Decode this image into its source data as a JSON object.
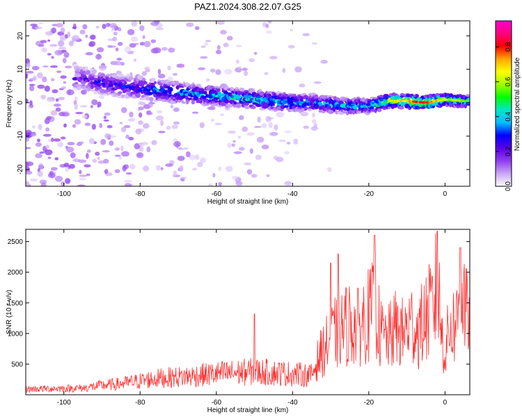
{
  "figure": {
    "title": "PAZ1.2024.308.22.07.G25"
  },
  "chart_data": [
    {
      "type": "heatmap",
      "xlabel": "Height of straight line (km)",
      "ylabel": "Frequency (Hz)",
      "xlim": [
        -110,
        6.5
      ],
      "ylim": [
        -25,
        24.5
      ],
      "x_ticks": [
        -100,
        -80,
        -60,
        -40,
        -20,
        0
      ],
      "y_ticks": [
        -20,
        -10,
        0,
        10,
        20
      ],
      "colorbar": {
        "label": "Normalized spectral amplitude",
        "range": [
          0,
          0.95
        ],
        "ticks": [
          0.0,
          0.2,
          0.4,
          0.6,
          0.8
        ],
        "tick_labels": [
          "0.0",
          "0.2",
          "0.4",
          "0.6",
          "0.8"
        ],
        "colormap": [
          "#ffffff",
          "#c9a5f5",
          "#8f3cf0",
          "#5b00e8",
          "#0000ff",
          "#00bfff",
          "#00e6c8",
          "#00ff00",
          "#a0ff00",
          "#ffff00",
          "#ffa500",
          "#ff0000",
          "#ff0080",
          "#ff00c8"
        ]
      },
      "ridge": {
        "x": [
          -96,
          -90,
          -85,
          -80,
          -75,
          -70,
          -65,
          -60,
          -55,
          -50,
          -45,
          -40,
          -35,
          -30,
          -25,
          -20,
          -15,
          -10,
          -5,
          0,
          5
        ],
        "frequency": [
          7.5,
          6,
          5,
          4.5,
          3.5,
          3,
          2.5,
          2,
          1.5,
          1,
          0.5,
          0,
          0,
          -0.5,
          -1,
          -1,
          0.5,
          0.5,
          0,
          1,
          0.5
        ],
        "peak_amplitude": [
          0.25,
          0.3,
          0.3,
          0.35,
          0.4,
          0.42,
          0.45,
          0.48,
          0.5,
          0.5,
          0.5,
          0.45,
          0.4,
          0.45,
          0.45,
          0.45,
          0.7,
          0.75,
          0.9,
          0.65,
          0.6
        ]
      },
      "grid": false
    },
    {
      "type": "line",
      "xlabel": "Height of straight line (km)",
      "ylabel": "SNR (10 * v/v)",
      "xlim": [
        -110,
        6.5
      ],
      "ylim": [
        0,
        2700
      ],
      "x_ticks": [
        -100,
        -80,
        -60,
        -40,
        -20,
        0
      ],
      "y_ticks": [
        500,
        1000,
        1500,
        2000,
        2500
      ],
      "series": [
        {
          "color": "#ff3030",
          "x": [
            -110,
            -105,
            -100,
            -95,
            -92,
            -90,
            -85,
            -80,
            -75,
            -70,
            -65,
            -60,
            -55,
            -50,
            -45,
            -40,
            -35,
            -33,
            -31,
            -29,
            -27,
            -25,
            -23,
            -21,
            -19,
            -18,
            -17,
            -15,
            -13,
            -11,
            -9,
            -7,
            -5,
            -3,
            -2,
            -1,
            0,
            1,
            3,
            4,
            5,
            6
          ],
          "values": [
            100,
            110,
            115,
            120,
            150,
            170,
            200,
            250,
            300,
            320,
            350,
            380,
            400,
            420,
            400,
            380,
            350,
            700,
            900,
            1100,
            1200,
            1300,
            1200,
            1400,
            1500,
            1600,
            1100,
            1000,
            1200,
            1100,
            1300,
            1150,
            1400,
            1600,
            2100,
            1200,
            700,
            1200,
            1300,
            1850,
            1750,
            1300
          ],
          "peaks": [
            {
              "x": -50,
              "value": 1320
            },
            {
              "x": -30,
              "value": 2150
            },
            {
              "x": -28,
              "value": 2300
            },
            {
              "x": -18.5,
              "value": 2600
            },
            {
              "x": -2,
              "value": 2670
            },
            {
              "x": 4,
              "value": 2400
            }
          ]
        }
      ],
      "grid": false
    }
  ]
}
